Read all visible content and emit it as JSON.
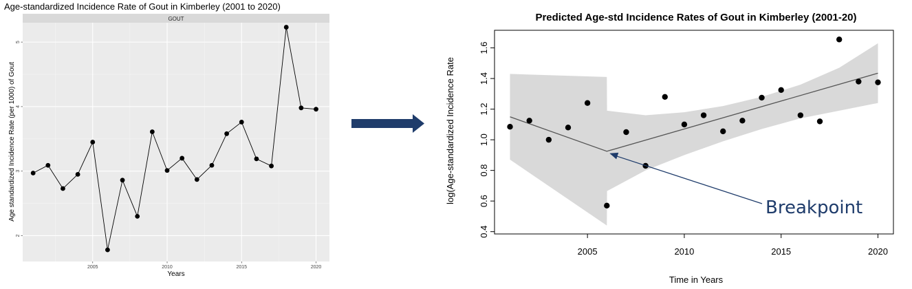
{
  "chart_data": [
    {
      "type": "line",
      "title": "Age-standardized Incidence Rate of Gout in Kimberley (2001 to 2020)",
      "facet_label": "GOUT",
      "xlabel": "Years",
      "ylabel": "Age standardized Incidence Rate (per 1000) of Gout",
      "xlim": [
        2000.3,
        2020.9
      ],
      "ylim": [
        1.6,
        5.3
      ],
      "xticks": [
        2005,
        2010,
        2015,
        2020
      ],
      "yticks": [
        2,
        3,
        4,
        5
      ],
      "grid": true,
      "x": [
        2001,
        2002,
        2003,
        2004,
        2005,
        2006,
        2007,
        2008,
        2009,
        2010,
        2011,
        2012,
        2013,
        2014,
        2015,
        2016,
        2017,
        2018,
        2019,
        2020
      ],
      "y": [
        2.97,
        3.09,
        2.73,
        2.95,
        3.45,
        1.78,
        2.86,
        2.3,
        3.61,
        3.01,
        3.2,
        2.87,
        3.09,
        3.58,
        3.76,
        3.19,
        3.08,
        5.23,
        3.98,
        3.96
      ]
    },
    {
      "type": "scatter",
      "title": "Predicted Age-std Incidence Rates of Gout in Kimberley (2001-20)",
      "xlabel": "Time in Years",
      "ylabel": "log(Age-standardized Incidence Rate",
      "xlim": [
        2000.2,
        2020.8
      ],
      "ylim": [
        0.385,
        1.715
      ],
      "xticks": [
        2005,
        2010,
        2015,
        2020
      ],
      "yticks": [
        "0.4",
        "0.6",
        "0.8",
        "1.0",
        "1.2",
        "1.4",
        "1.6"
      ],
      "grid": false,
      "points": {
        "x": [
          2001,
          2002,
          2003,
          2004,
          2005,
          2006,
          2007,
          2008,
          2009,
          2010,
          2011,
          2012,
          2013,
          2014,
          2015,
          2016,
          2017,
          2018,
          2019,
          2020
        ],
        "y": [
          1.085,
          1.125,
          1.0,
          1.08,
          1.24,
          0.57,
          1.05,
          0.83,
          1.28,
          1.1,
          1.16,
          1.055,
          1.125,
          1.275,
          1.325,
          1.16,
          1.12,
          1.655,
          1.38,
          1.375
        ]
      },
      "fit": {
        "x": [
          2001,
          2006,
          2020
        ],
        "y": [
          1.15,
          0.925,
          1.435
        ]
      },
      "confidence_band": {
        "x": [
          2001,
          2006,
          2006.01,
          2008,
          2010,
          2012,
          2014,
          2016,
          2018,
          2020
        ],
        "upper": [
          1.43,
          1.41,
          1.19,
          1.16,
          1.18,
          1.22,
          1.28,
          1.36,
          1.47,
          1.63
        ],
        "lower": [
          0.87,
          0.44,
          0.665,
          0.8,
          0.9,
          0.99,
          1.07,
          1.14,
          1.19,
          1.24
        ]
      },
      "annotation": {
        "text": "Breakpoint",
        "points_to": [
          2006,
          0.925
        ]
      }
    }
  ],
  "arrow": {
    "color": "#1f3c6b"
  },
  "colors": {
    "panel_bg": "#ebebeb",
    "strip_bg": "#d9d9d9",
    "band": "#d9d9d9",
    "annotation": "#1f3c6b"
  }
}
